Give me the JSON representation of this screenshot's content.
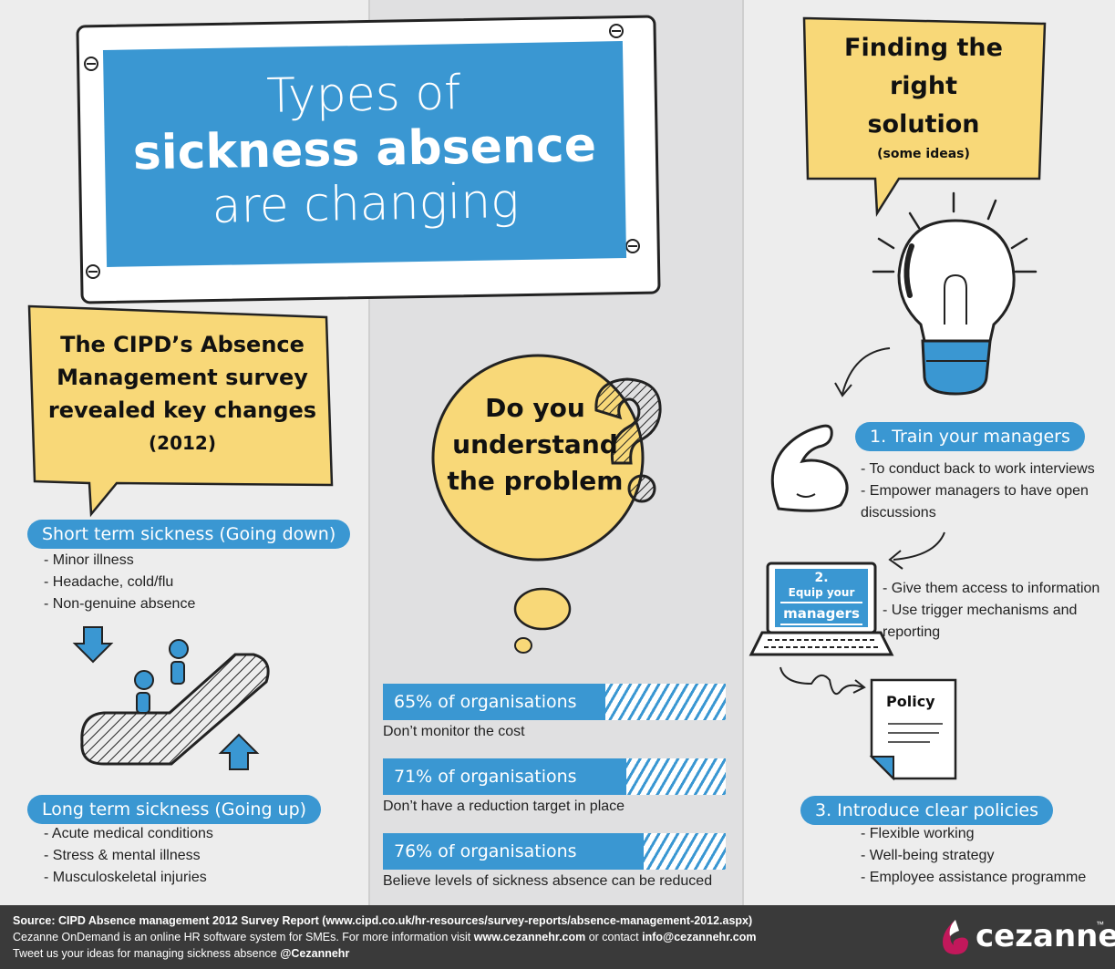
{
  "title": {
    "line1": "Types of",
    "line2": "sickness absence",
    "line3": "are changing"
  },
  "cipd": {
    "line1": "The CIPD’s Absence",
    "line2": "Management survey",
    "line3": "revealed key changes",
    "year": "(2012)"
  },
  "short_term": {
    "label": "Short term sickness (Going down)",
    "items": [
      "Minor illness",
      "Headache, cold/flu",
      "Non-genuine absence"
    ]
  },
  "long_term": {
    "label": "Long term sickness (Going up)",
    "items": [
      "Acute medical conditions",
      "Stress & mental illness",
      "Musculoskeletal injuries"
    ]
  },
  "question": {
    "line1": "Do you",
    "line2": "understand",
    "line3": "the problem"
  },
  "stats": [
    {
      "label": "65% of organisations",
      "value": 65,
      "desc": "Don’t monitor the cost"
    },
    {
      "label": "71% of organisations",
      "value": 71,
      "desc": "Don’t have a reduction target in place"
    },
    {
      "label": "76% of organisations",
      "value": 76,
      "desc": "Believe levels of sickness absence can be reduced"
    }
  ],
  "solution": {
    "line1": "Finding the",
    "line2": "right",
    "line3": "solution",
    "sub": "(some ideas)"
  },
  "step1": {
    "label": "1. Train your managers",
    "items": [
      "To conduct back to work interviews",
      "Empower managers to have open discussions"
    ]
  },
  "step2": {
    "num": "2.",
    "line1": "Equip your",
    "line2": "managers",
    "items": [
      "Give them access to information",
      "Use trigger mechanisms and reporting"
    ]
  },
  "policy_label": "Policy",
  "step3": {
    "label": "3. Introduce clear policies",
    "items": [
      "Flexible working",
      "Well-being strategy",
      "Employee assistance programme"
    ]
  },
  "footer": {
    "source_prefix": "Source: ",
    "source_text": "CIPD  Absence management 2012 Survey Report (www.cipd.co.uk/hr-resources/survey-reports/absence-management-2012.aspx)",
    "line2_a": "Cezanne OnDemand is an online HR software system for SMEs. For more information visit ",
    "line2_link1": "www.cezannehr.com",
    "line2_b": " or contact ",
    "line2_link2": "info@cezannehr.com",
    "line3_a": "Tweet us your ideas for managing sickness absence ",
    "line3_handle": "@Cezannehr",
    "brand": "cezanne",
    "tm": "™"
  },
  "colors": {
    "blue": "#3a97d2",
    "yellow": "#f8d878",
    "dark": "#3a3a3a",
    "brand_red": "#c2185b"
  }
}
